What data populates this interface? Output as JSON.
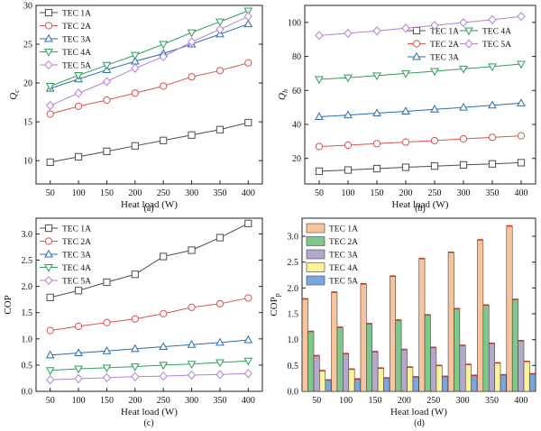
{
  "figure": {
    "captions": [
      "(a)",
      "(b)",
      "(c)",
      "(d)"
    ]
  },
  "chart_data": [
    {
      "type": "line",
      "id": "a",
      "title": "",
      "xlabel": "Heat load (W)",
      "ylabel_base": "Q",
      "ylabel_sub": "c",
      "x": [
        50,
        100,
        150,
        200,
        250,
        300,
        350,
        400
      ],
      "xlim": [
        25,
        425
      ],
      "ylim": [
        7,
        30
      ],
      "yticks": [
        10,
        15,
        20,
        25,
        30
      ],
      "legend_position": "top-left",
      "series": [
        {
          "name": "TEC 1A",
          "color": "#4d4d4d",
          "marker": "square",
          "values": [
            9.8,
            10.5,
            11.2,
            11.9,
            12.6,
            13.3,
            14.0,
            14.9
          ]
        },
        {
          "name": "TEC 2A",
          "color": "#d9534f",
          "marker": "circle",
          "values": [
            16.0,
            17.0,
            17.8,
            18.7,
            19.6,
            20.8,
            21.6,
            22.6
          ]
        },
        {
          "name": "TEC 3A",
          "color": "#2b6cb0",
          "marker": "triangle-up",
          "values": [
            19.3,
            20.5,
            21.7,
            22.8,
            23.8,
            25.0,
            26.3,
            27.6
          ]
        },
        {
          "name": "TEC 4A",
          "color": "#2e9e5b",
          "marker": "triangle-down",
          "values": [
            19.6,
            21.0,
            22.3,
            23.6,
            25.0,
            26.5,
            27.9,
            29.3
          ]
        },
        {
          "name": "TEC 5A",
          "color": "#b37fd6",
          "marker": "diamond",
          "values": [
            17.1,
            18.7,
            20.2,
            21.9,
            23.4,
            25.3,
            26.9,
            28.6
          ]
        }
      ]
    },
    {
      "type": "line",
      "id": "b",
      "title": "",
      "xlabel": "Heat load (W)",
      "ylabel_base": "Q",
      "ylabel_sub": "h",
      "x": [
        50,
        100,
        150,
        200,
        250,
        300,
        350,
        400
      ],
      "xlim": [
        25,
        425
      ],
      "ylim": [
        5,
        110
      ],
      "yticks": [
        20,
        40,
        60,
        80,
        100
      ],
      "legend_position": "middle-right",
      "series": [
        {
          "name": "TEC 1A",
          "color": "#4d4d4d",
          "marker": "square",
          "values": [
            12.5,
            13.2,
            14.0,
            14.8,
            15.5,
            16.2,
            16.8,
            17.5
          ]
        },
        {
          "name": "TEC 2A",
          "color": "#d9534f",
          "marker": "circle",
          "values": [
            27.0,
            27.8,
            28.7,
            29.6,
            30.5,
            31.5,
            32.4,
            33.3
          ]
        },
        {
          "name": "TEC 3A",
          "color": "#2b6cb0",
          "marker": "triangle-up",
          "values": [
            44.5,
            45.5,
            46.6,
            47.7,
            48.9,
            50.0,
            51.3,
            52.5
          ]
        },
        {
          "name": "TEC 4A",
          "color": "#2e9e5b",
          "marker": "triangle-down",
          "values": [
            66.5,
            67.5,
            68.7,
            70.0,
            71.3,
            72.7,
            74.0,
            75.5
          ]
        },
        {
          "name": "TEC 5A",
          "color": "#b37fd6",
          "marker": "diamond",
          "values": [
            92.3,
            93.6,
            95.0,
            96.6,
            98.2,
            99.9,
            101.6,
            103.5
          ]
        }
      ]
    },
    {
      "type": "line",
      "id": "c",
      "title": "",
      "xlabel": "Heat load (W)",
      "ylabel_base": "COP",
      "ylabel_sub": "",
      "x": [
        50,
        100,
        150,
        200,
        250,
        300,
        350,
        400
      ],
      "xlim": [
        25,
        425
      ],
      "ylim": [
        0.0,
        3.3
      ],
      "yticks": [
        0.0,
        0.5,
        1.0,
        1.5,
        2.0,
        2.5,
        3.0
      ],
      "legend_position": "top-left",
      "series": [
        {
          "name": "TEC 1A",
          "color": "#4d4d4d",
          "marker": "square",
          "values": [
            1.79,
            1.92,
            2.08,
            2.23,
            2.57,
            2.69,
            2.93,
            3.2
          ]
        },
        {
          "name": "TEC 2A",
          "color": "#d9534f",
          "marker": "circle",
          "values": [
            1.16,
            1.24,
            1.31,
            1.38,
            1.48,
            1.6,
            1.67,
            1.78
          ]
        },
        {
          "name": "TEC 3A",
          "color": "#2b6cb0",
          "marker": "triangle-up",
          "values": [
            0.69,
            0.73,
            0.77,
            0.81,
            0.85,
            0.89,
            0.93,
            0.98
          ]
        },
        {
          "name": "TEC 4A",
          "color": "#2e9e5b",
          "marker": "triangle-down",
          "values": [
            0.4,
            0.43,
            0.45,
            0.47,
            0.5,
            0.52,
            0.55,
            0.58
          ]
        },
        {
          "name": "TEC 5A",
          "color": "#b37fd6",
          "marker": "diamond",
          "values": [
            0.22,
            0.24,
            0.26,
            0.28,
            0.29,
            0.31,
            0.32,
            0.34
          ]
        }
      ]
    },
    {
      "type": "bar",
      "id": "d",
      "title": "",
      "xlabel": "Heat load (W)",
      "ylabel_base": "COP",
      "ylabel_sub": "p",
      "categories": [
        "50",
        "100",
        "150",
        "200",
        "250",
        "300",
        "350",
        "400"
      ],
      "ylim": [
        0.0,
        3.35
      ],
      "yticks": [
        0.0,
        0.5,
        1.0,
        1.5,
        2.0,
        2.5,
        3.0
      ],
      "legend_position": "top-left",
      "series": [
        {
          "name": "TEC 1A",
          "color": "#f8c49c",
          "values": [
            1.79,
            1.92,
            2.08,
            2.23,
            2.57,
            2.69,
            2.93,
            3.2
          ]
        },
        {
          "name": "TEC 2A",
          "color": "#7ec88c",
          "values": [
            1.16,
            1.24,
            1.31,
            1.38,
            1.48,
            1.6,
            1.67,
            1.78
          ]
        },
        {
          "name": "TEC 3A",
          "color": "#b3a9cb",
          "values": [
            0.69,
            0.73,
            0.77,
            0.81,
            0.85,
            0.89,
            0.93,
            0.98
          ]
        },
        {
          "name": "TEC 4A",
          "color": "#fbf29c",
          "values": [
            0.4,
            0.43,
            0.45,
            0.47,
            0.5,
            0.52,
            0.55,
            0.58
          ]
        },
        {
          "name": "TEC 5A",
          "color": "#7aa6de",
          "values": [
            0.22,
            0.24,
            0.26,
            0.28,
            0.29,
            0.31,
            0.32,
            0.34
          ]
        }
      ],
      "error_marks_color": "#c0392b"
    }
  ]
}
